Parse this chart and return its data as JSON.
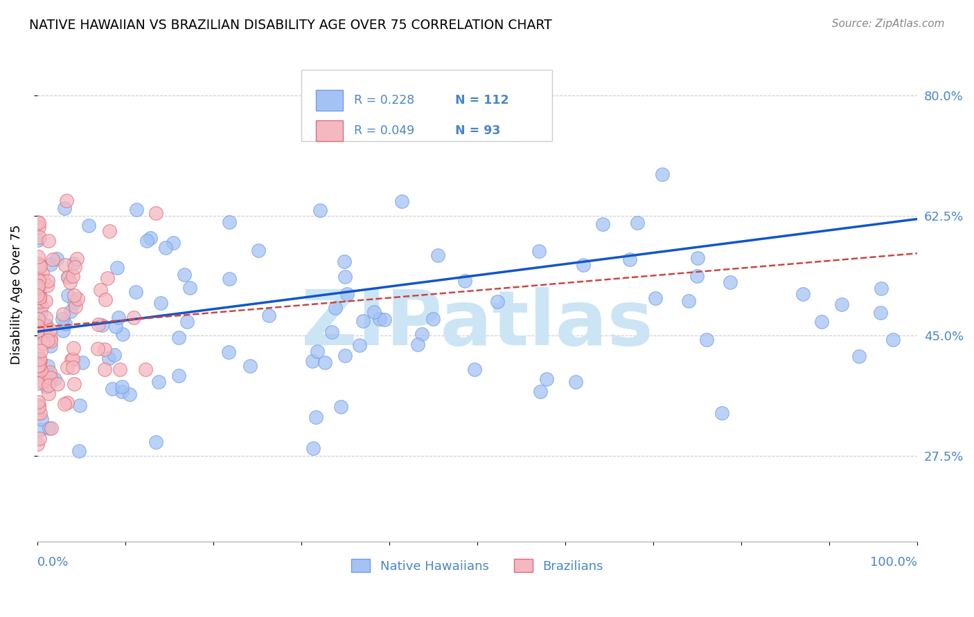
{
  "title": "NATIVE HAWAIIAN VS BRAZILIAN DISABILITY AGE OVER 75 CORRELATION CHART",
  "source": "Source: ZipAtlas.com",
  "ylabel": "Disability Age Over 75",
  "watermark": "ZIPatlas",
  "legend_r1": "0.228",
  "legend_n1": "112",
  "legend_r2": "0.049",
  "legend_n2": "93",
  "r1": 0.228,
  "r2": 0.049,
  "n1": 112,
  "n2": 93,
  "xlim": [
    0,
    1
  ],
  "ylim": [
    0.15,
    0.87
  ],
  "yticks": [
    0.275,
    0.45,
    0.625,
    0.8
  ],
  "ytick_labels": [
    "27.5%",
    "45.0%",
    "62.5%",
    "80.0%"
  ],
  "color_blue": "#a4c2f4",
  "color_pink": "#f4b8c1",
  "edge_blue": "#6d9eeb",
  "edge_pink": "#e06c75",
  "line_blue": "#1155cc",
  "line_pink": "#cc4444",
  "bg": "#ffffff",
  "grid_color": "#cccccc",
  "title_color": "#000000",
  "blue_text": "#4a86c8",
  "source_color": "#888888",
  "watermark_color": "#cce5f5",
  "seed1": 42,
  "seed2": 77
}
